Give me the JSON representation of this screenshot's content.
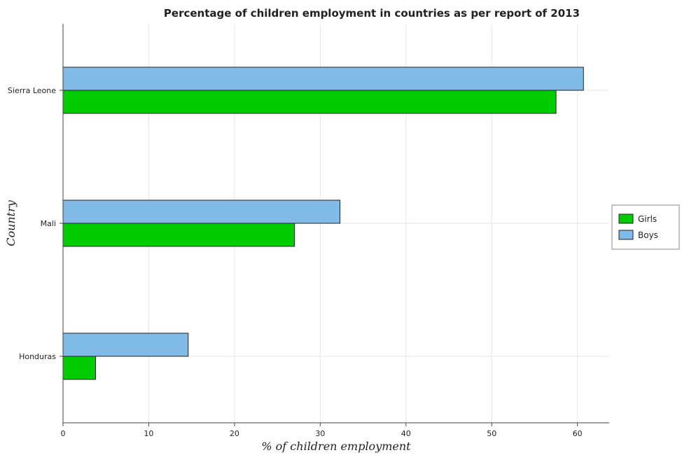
{
  "chart_data": {
    "type": "bar",
    "orientation": "horizontal",
    "title": "Percentage of children employment in countries as per report of 2013",
    "xlabel": "% of children employment",
    "ylabel": "Country",
    "categories": [
      "Honduras",
      "Mali",
      "Sierra Leone"
    ],
    "series": [
      {
        "name": "Girls",
        "color": "#00cc00",
        "values": [
          3.8,
          27.0,
          57.5
        ]
      },
      {
        "name": "Boys",
        "color": "#80bbe8",
        "values": [
          14.6,
          32.3,
          60.7
        ]
      }
    ],
    "xlim": [
      0,
      63.7
    ],
    "xticks": [
      0,
      10,
      20,
      30,
      40,
      50,
      60
    ],
    "grid": true,
    "legend_position": "right"
  }
}
